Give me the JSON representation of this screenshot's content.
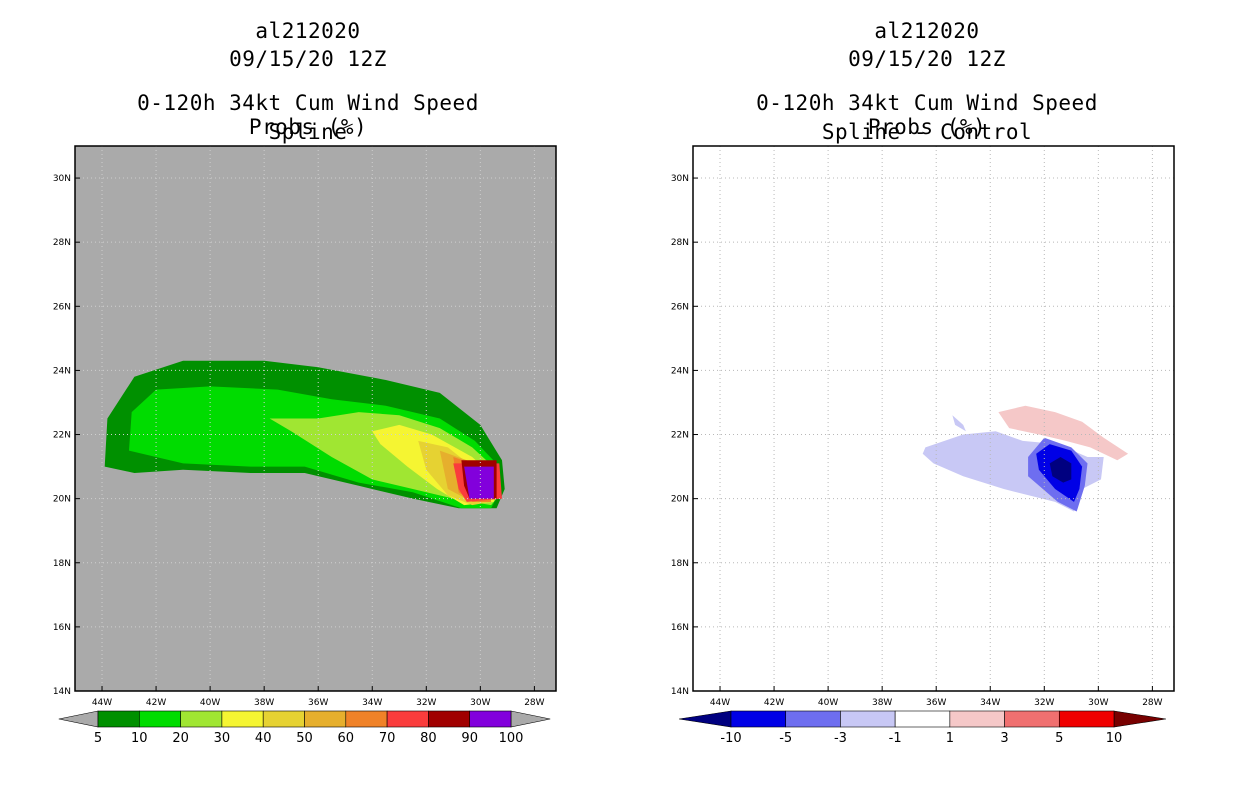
{
  "panels": [
    {
      "storm": "al212020",
      "datetime": "09/15/20 12Z",
      "title": "0-120h 34kt Cum Wind Speed Probs (%)",
      "subtitle": "Spline"
    },
    {
      "storm": "al212020",
      "datetime": "09/15/20 12Z",
      "title": "0-120h 34kt Cum Wind Speed Probs (%)",
      "subtitle": "Spline - Control"
    }
  ],
  "chart_data": [
    {
      "type": "contour-map",
      "title": "0-120h 34kt Cum Wind Speed Probs (%)",
      "subtitle": "Spline",
      "x_ticks": [
        "44W",
        "42W",
        "40W",
        "38W",
        "36W",
        "34W",
        "32W",
        "30W",
        "28W"
      ],
      "y_ticks": [
        "14N",
        "16N",
        "18N",
        "20N",
        "22N",
        "24N",
        "26N",
        "28N",
        "30N"
      ],
      "xlim_lon_west": [
        45,
        27.2
      ],
      "ylim_lat": [
        14,
        31
      ],
      "background_color": "#aaaaaa",
      "colorbar": {
        "labels": [
          "5",
          "10",
          "20",
          "30",
          "40",
          "50",
          "60",
          "70",
          "80",
          "90",
          "100"
        ],
        "colors": [
          "#009000",
          "#00dc00",
          "#a0e632",
          "#f5f532",
          "#e6d232",
          "#e6af2d",
          "#f08228",
          "#fa3c3c",
          "#a00000",
          "#8200dc"
        ],
        "under_color": "#aaaaaa",
        "over_color": "#aaaaaa"
      },
      "contours": [
        {
          "level": 5,
          "color": "#009000",
          "polygon": [
            [
              43.9,
              21.0
            ],
            [
              43.8,
              22.5
            ],
            [
              42.8,
              23.8
            ],
            [
              41.0,
              24.3
            ],
            [
              38.0,
              24.3
            ],
            [
              36.0,
              24.1
            ],
            [
              33.5,
              23.7
            ],
            [
              31.5,
              23.3
            ],
            [
              30.0,
              22.3
            ],
            [
              29.2,
              21.2
            ],
            [
              29.1,
              20.3
            ],
            [
              29.4,
              19.7
            ],
            [
              30.8,
              19.7
            ],
            [
              32.5,
              20.0
            ],
            [
              34.5,
              20.4
            ],
            [
              36.5,
              20.8
            ],
            [
              38.5,
              20.8
            ],
            [
              41.0,
              20.9
            ],
            [
              42.8,
              20.8
            ]
          ]
        },
        {
          "level": 10,
          "color": "#00dc00",
          "polygon": [
            [
              43.0,
              21.5
            ],
            [
              42.9,
              22.7
            ],
            [
              42.0,
              23.4
            ],
            [
              40.0,
              23.5
            ],
            [
              37.5,
              23.4
            ],
            [
              35.5,
              23.1
            ],
            [
              33.5,
              22.9
            ],
            [
              31.5,
              22.5
            ],
            [
              30.2,
              21.8
            ],
            [
              29.3,
              21.0
            ],
            [
              29.3,
              20.2
            ],
            [
              29.6,
              19.7
            ],
            [
              30.7,
              19.7
            ],
            [
              32.5,
              20.2
            ],
            [
              34.5,
              20.5
            ],
            [
              36.5,
              21.0
            ],
            [
              38.5,
              21.0
            ],
            [
              41.0,
              21.1
            ]
          ]
        },
        {
          "level": 20,
          "color": "#a0e632",
          "polygon": [
            [
              37.8,
              22.5
            ],
            [
              36.0,
              22.5
            ],
            [
              34.5,
              22.7
            ],
            [
              33.0,
              22.6
            ],
            [
              31.5,
              22.2
            ],
            [
              30.3,
              21.6
            ],
            [
              29.4,
              20.9
            ],
            [
              29.4,
              20.0
            ],
            [
              29.6,
              19.8
            ],
            [
              31.0,
              20.0
            ],
            [
              32.5,
              20.3
            ],
            [
              34.0,
              20.6
            ],
            [
              35.5,
              21.3
            ],
            [
              37.0,
              22.1
            ]
          ]
        },
        {
          "level": 30,
          "color": "#f5f532",
          "polygon": [
            [
              34.0,
              22.1
            ],
            [
              33.0,
              22.3
            ],
            [
              31.8,
              22.0
            ],
            [
              30.3,
              21.3
            ],
            [
              29.4,
              20.6
            ],
            [
              29.5,
              19.9
            ],
            [
              30.6,
              19.8
            ],
            [
              31.6,
              20.3
            ],
            [
              32.7,
              21.0
            ],
            [
              33.7,
              21.7
            ]
          ]
        },
        {
          "level": 40,
          "color": "#e6d232",
          "polygon": [
            [
              32.3,
              21.8
            ],
            [
              31.2,
              21.6
            ],
            [
              30.3,
              21.0
            ],
            [
              29.6,
              20.3
            ],
            [
              29.6,
              19.9
            ],
            [
              30.3,
              19.8
            ],
            [
              31.2,
              20.1
            ],
            [
              32.0,
              20.9
            ]
          ]
        },
        {
          "level": 50,
          "color": "#e6af2d",
          "polygon": [
            [
              31.5,
              21.5
            ],
            [
              30.5,
              21.2
            ],
            [
              29.7,
              20.6
            ],
            [
              29.6,
              19.9
            ],
            [
              30.3,
              19.9
            ],
            [
              31.2,
              20.3
            ]
          ]
        },
        {
          "level": 60,
          "color": "#f08228",
          "polygon": [
            [
              31.0,
              21.3
            ],
            [
              30.3,
              21.1
            ],
            [
              29.7,
              20.5
            ],
            [
              29.6,
              19.9
            ],
            [
              30.3,
              19.9
            ],
            [
              30.8,
              20.2
            ]
          ]
        },
        {
          "level": 70,
          "color": "#fa3c3c",
          "polygon": [
            [
              31.0,
              21.1
            ],
            [
              29.3,
              21.1
            ],
            [
              29.2,
              20.0
            ],
            [
              30.5,
              19.9
            ],
            [
              30.8,
              20.3
            ]
          ]
        },
        {
          "level": 80,
          "color": "#a00000",
          "polygon": [
            [
              30.7,
              21.2
            ],
            [
              29.4,
              21.2
            ],
            [
              29.4,
              20.0
            ],
            [
              30.4,
              20.0
            ],
            [
              30.6,
              20.4
            ]
          ]
        },
        {
          "level": 90,
          "color": "#8200dc",
          "polygon": [
            [
              30.6,
              21.0
            ],
            [
              29.5,
              21.0
            ],
            [
              29.5,
              20.0
            ],
            [
              30.4,
              20.0
            ]
          ]
        }
      ]
    },
    {
      "type": "contour-map",
      "title": "0-120h 34kt Cum Wind Speed Probs (%)",
      "subtitle": "Spline - Control",
      "x_ticks": [
        "44W",
        "42W",
        "40W",
        "38W",
        "36W",
        "34W",
        "32W",
        "30W",
        "28W"
      ],
      "y_ticks": [
        "14N",
        "16N",
        "18N",
        "20N",
        "22N",
        "24N",
        "26N",
        "28N",
        "30N"
      ],
      "xlim_lon_west": [
        45,
        27.2
      ],
      "ylim_lat": [
        14,
        31
      ],
      "background_color": "#ffffff",
      "colorbar": {
        "labels": [
          "-10",
          "-5",
          "-3",
          "-1",
          "1",
          "3",
          "5",
          "10"
        ],
        "colors": [
          "#0000e6",
          "#6e6ef0",
          "#c8c8f5",
          "#ffffff",
          "#f5c8c8",
          "#f07070",
          "#f00000"
        ],
        "under_color": "#000080",
        "over_color": "#780000"
      },
      "contours": [
        {
          "level": -1,
          "color": "#c8c8f5",
          "polygon": [
            [
              36.4,
              21.6
            ],
            [
              35.0,
              22.0
            ],
            [
              33.8,
              22.1
            ],
            [
              32.8,
              21.8
            ],
            [
              31.5,
              21.7
            ],
            [
              30.4,
              21.3
            ],
            [
              29.8,
              21.3
            ],
            [
              29.9,
              20.6
            ],
            [
              30.6,
              20.3
            ],
            [
              30.9,
              19.6
            ],
            [
              31.6,
              19.9
            ],
            [
              33.5,
              20.3
            ],
            [
              35.0,
              20.7
            ],
            [
              36.1,
              21.1
            ],
            [
              36.5,
              21.4
            ]
          ]
        },
        {
          "level": -1,
          "color": "#c8c8f5",
          "polygon": [
            [
              35.4,
              22.6
            ],
            [
              35.0,
              22.3
            ],
            [
              34.9,
              22.1
            ],
            [
              35.3,
              22.3
            ]
          ]
        },
        {
          "level": -3,
          "color": "#6e6ef0",
          "polygon": [
            [
              32.6,
              21.3
            ],
            [
              32.0,
              21.9
            ],
            [
              31.0,
              21.6
            ],
            [
              30.4,
              21.1
            ],
            [
              30.5,
              20.4
            ],
            [
              30.8,
              19.6
            ],
            [
              31.5,
              19.9
            ],
            [
              32.6,
              20.7
            ]
          ]
        },
        {
          "level": -5,
          "color": "#0000e6",
          "polygon": [
            [
              32.3,
              21.4
            ],
            [
              31.8,
              21.7
            ],
            [
              31.0,
              21.5
            ],
            [
              30.6,
              21.0
            ],
            [
              30.7,
              20.3
            ],
            [
              30.9,
              19.9
            ],
            [
              31.6,
              20.3
            ],
            [
              32.2,
              20.9
            ]
          ]
        },
        {
          "level": -10,
          "color": "#000080",
          "polygon": [
            [
              31.8,
              21.1
            ],
            [
              31.4,
              21.3
            ],
            [
              31.0,
              21.1
            ],
            [
              31.0,
              20.6
            ],
            [
              31.3,
              20.5
            ],
            [
              31.7,
              20.7
            ]
          ]
        },
        {
          "level": 1,
          "color": "#f5c8c8",
          "polygon": [
            [
              33.7,
              22.7
            ],
            [
              32.7,
              22.9
            ],
            [
              31.6,
              22.7
            ],
            [
              30.6,
              22.4
            ],
            [
              29.8,
              21.9
            ],
            [
              28.9,
              21.4
            ],
            [
              29.3,
              21.2
            ],
            [
              30.3,
              21.6
            ],
            [
              31.2,
              21.8
            ],
            [
              32.2,
              22.0
            ],
            [
              33.3,
              22.2
            ]
          ]
        }
      ]
    }
  ]
}
